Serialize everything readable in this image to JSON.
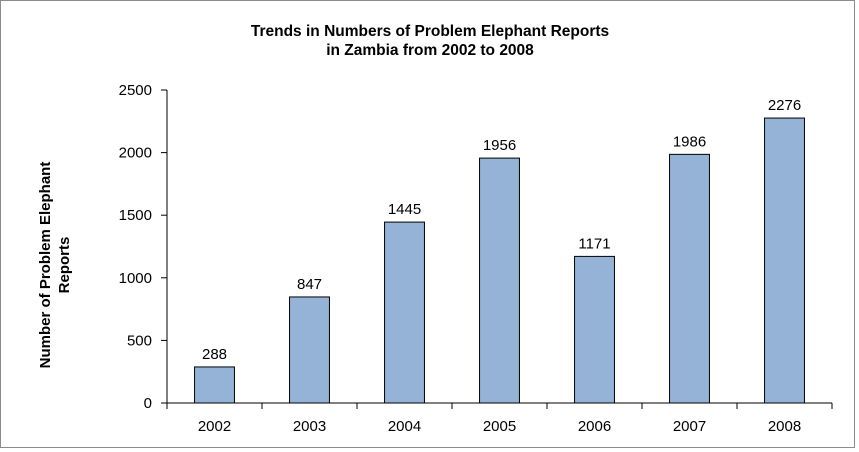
{
  "chart_data": {
    "type": "bar",
    "title_lines": [
      "Trends in Numbers of Problem Elephant Reports",
      "in Zambia from 2002 to 2008"
    ],
    "ylabel_lines": [
      "Number of Problem Elephant",
      "Reports"
    ],
    "xlabel": "",
    "categories": [
      "2002",
      "2003",
      "2004",
      "2005",
      "2006",
      "2007",
      "2008"
    ],
    "values": [
      288,
      847,
      1445,
      1956,
      1171,
      1986,
      2276
    ],
    "data_labels": [
      "288",
      "847",
      "1445",
      "1956",
      "1171",
      "1986",
      "2276"
    ],
    "ylim": [
      0,
      2500
    ],
    "yticks": [
      0,
      500,
      1000,
      1500,
      2000,
      2500
    ],
    "ytick_labels": [
      "0",
      "500",
      "1000",
      "1500",
      "2000",
      "2500"
    ],
    "grid": false,
    "legend": "none",
    "bar_color": "#95b3d7",
    "bar_edge_color": "#000000"
  }
}
